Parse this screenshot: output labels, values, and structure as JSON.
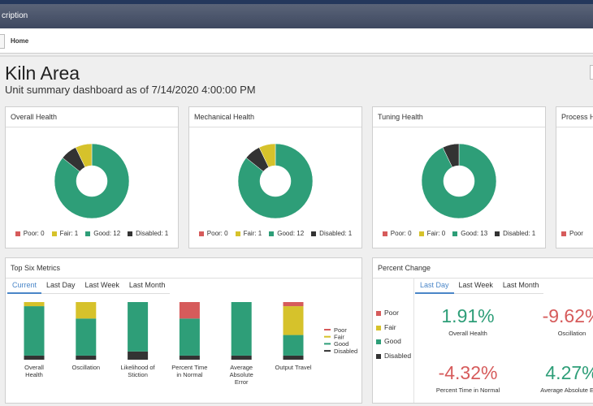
{
  "header": {
    "app_title": "cription",
    "breadcrumb": "Home"
  },
  "page": {
    "title": "Kiln Area",
    "subtitle": "Unit summary dashboard as of 7/14/2020 4:00:00 PM"
  },
  "chart_data": [
    {
      "type": "donut",
      "title": "Overall Health",
      "categories": [
        "Poor",
        "Fair",
        "Good",
        "Disabled"
      ],
      "values": [
        0,
        1,
        12,
        1
      ],
      "value_labels": [
        "Poor: 0",
        "Fair: 1",
        "Good: 12",
        "Disabled: 1"
      ],
      "colors": [
        "#d65b5b",
        "#d6c22b",
        "#2e9e78",
        "#333333"
      ]
    },
    {
      "type": "donut",
      "title": "Mechanical Health",
      "categories": [
        "Poor",
        "Fair",
        "Good",
        "Disabled"
      ],
      "values": [
        0,
        1,
        12,
        1
      ],
      "value_labels": [
        "Poor: 0",
        "Fair: 1",
        "Good: 12",
        "Disabled: 1"
      ],
      "colors": [
        "#d65b5b",
        "#d6c22b",
        "#2e9e78",
        "#333333"
      ]
    },
    {
      "type": "donut",
      "title": "Tuning Health",
      "categories": [
        "Poor",
        "Fair",
        "Good",
        "Disabled"
      ],
      "values": [
        0,
        0,
        13,
        1
      ],
      "value_labels": [
        "Poor: 0",
        "Fair: 0",
        "Good: 13",
        "Disabled: 1"
      ],
      "colors": [
        "#d65b5b",
        "#d6c22b",
        "#2e9e78",
        "#333333"
      ]
    },
    {
      "type": "stacked_bar",
      "title": "Top Six Metrics",
      "tabs": [
        "Current",
        "Last Day",
        "Last Week",
        "Last Month"
      ],
      "categories": [
        "Overall Health",
        "Oscillation",
        "Likelihood of Stiction",
        "Percent Time in Normal",
        "Average Absolute Error",
        "Output Travel"
      ],
      "series": [
        {
          "name": "Poor",
          "color": "#d65b5b",
          "values": [
            0,
            0,
            0,
            4,
            0,
            1
          ]
        },
        {
          "name": "Fair",
          "color": "#d6c22b",
          "values": [
            1,
            4,
            0,
            0,
            0,
            7
          ]
        },
        {
          "name": "Good",
          "color": "#2e9e78",
          "values": [
            12,
            9,
            12,
            9,
            13,
            5
          ]
        },
        {
          "name": "Disabled",
          "color": "#333333",
          "values": [
            1,
            1,
            2,
            1,
            1,
            1
          ]
        }
      ]
    }
  ],
  "cropped_panel": {
    "title": "Process Health",
    "legend_first": "Poor",
    "color": "#d65b5b"
  },
  "percent_change": {
    "title": "Percent Change",
    "legend": [
      {
        "name": "Poor",
        "color": "#d65b5b"
      },
      {
        "name": "Fair",
        "color": "#d6c22b"
      },
      {
        "name": "Good",
        "color": "#2e9e78"
      },
      {
        "name": "Disabled",
        "color": "#333333"
      }
    ],
    "tabs": [
      "Last Day",
      "Last Week",
      "Last Month"
    ],
    "kpis": [
      {
        "value": "1.91%",
        "label": "Overall Health",
        "color": "#2e9e78"
      },
      {
        "value": "-9.62%",
        "label": "Oscillation",
        "color": "#d65b5b"
      },
      {
        "value": "-4.32%",
        "label": "Percent Time in Normal",
        "color": "#d65b5b"
      },
      {
        "value": "4.27%",
        "label": "Average Absolute Error",
        "color": "#2e9e78"
      }
    ]
  }
}
